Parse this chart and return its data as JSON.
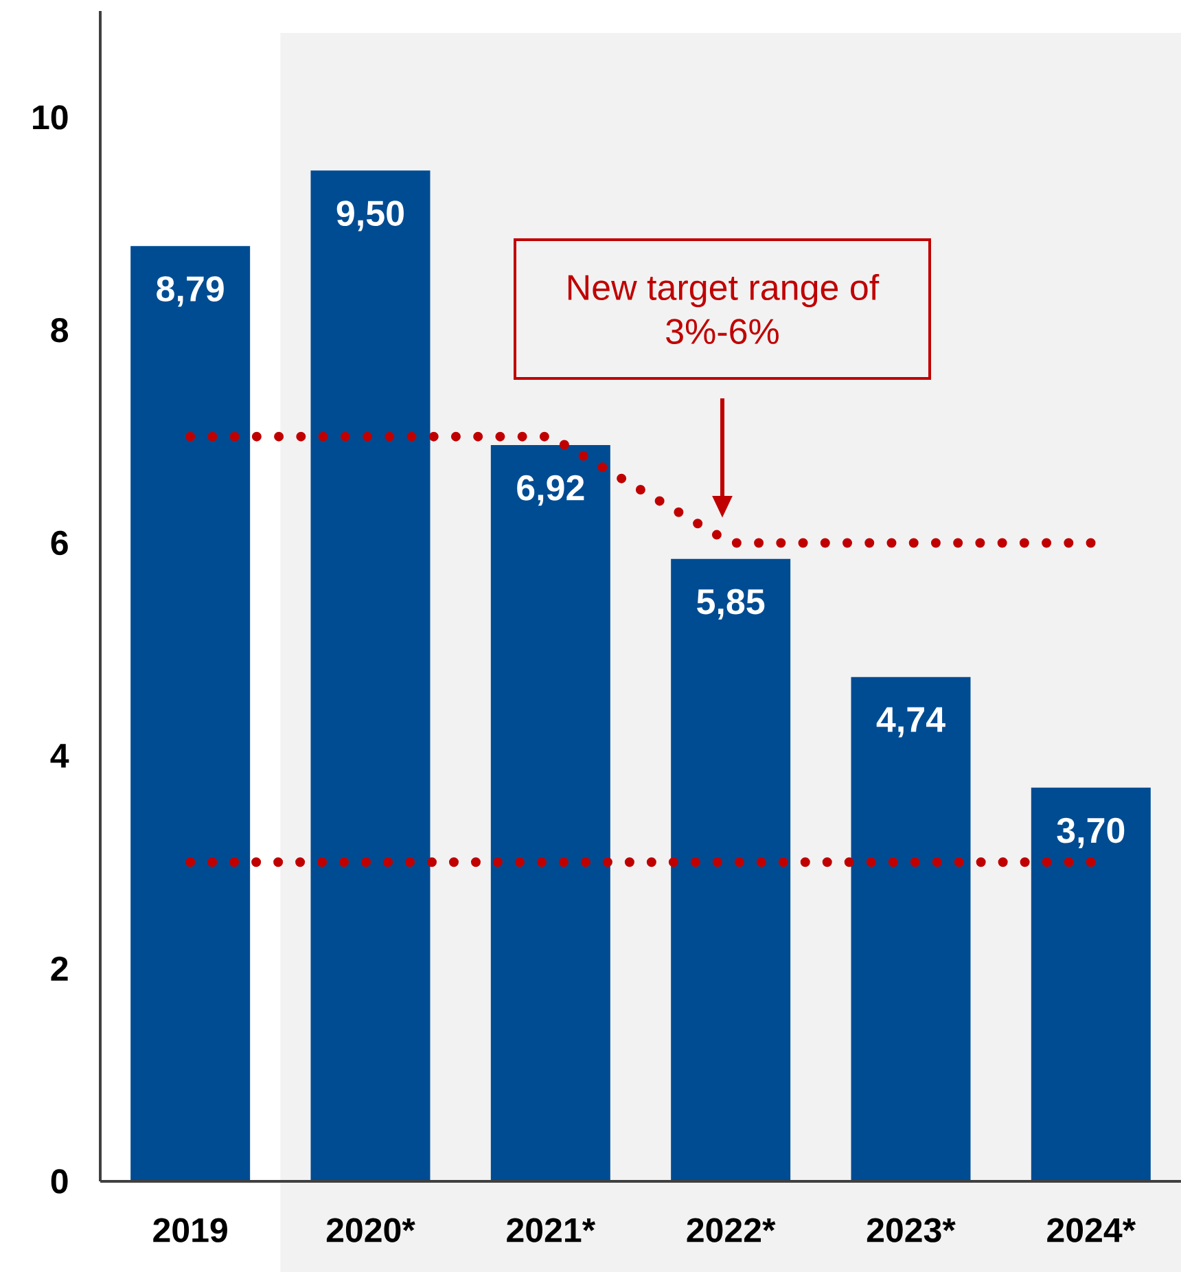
{
  "chart_data": {
    "type": "bar",
    "categories": [
      "2019",
      "2020*",
      "2021*",
      "2022*",
      "2023*",
      "2024*"
    ],
    "series": [
      {
        "color": "#004c93",
        "values": [
          8.79,
          9.5,
          6.92,
          5.85,
          4.74,
          3.7
        ],
        "value_labels": [
          "8,79",
          "9,50",
          "6,92",
          "5,85",
          "4,74",
          "3,70"
        ]
      },
      {
        "type": "line",
        "color": "#c00000",
        "values": [
          7,
          7,
          7,
          6,
          6,
          6
        ],
        "line_style": "dotted",
        "marker": "none"
      },
      {
        "type": "line",
        "color": "#c00000",
        "values": [
          3,
          3,
          3,
          3,
          3,
          3
        ],
        "line_style": "dotted",
        "marker": "none"
      }
    ],
    "ylim": [
      0,
      11
    ],
    "yticks": [
      0,
      2,
      4,
      6,
      8,
      10
    ],
    "bands": [
      {
        "axis": "x",
        "from": "2020*",
        "to": "2024*",
        "color": "#f2f2f2"
      }
    ],
    "annotations": [
      "New target range of 3%-6%"
    ]
  }
}
